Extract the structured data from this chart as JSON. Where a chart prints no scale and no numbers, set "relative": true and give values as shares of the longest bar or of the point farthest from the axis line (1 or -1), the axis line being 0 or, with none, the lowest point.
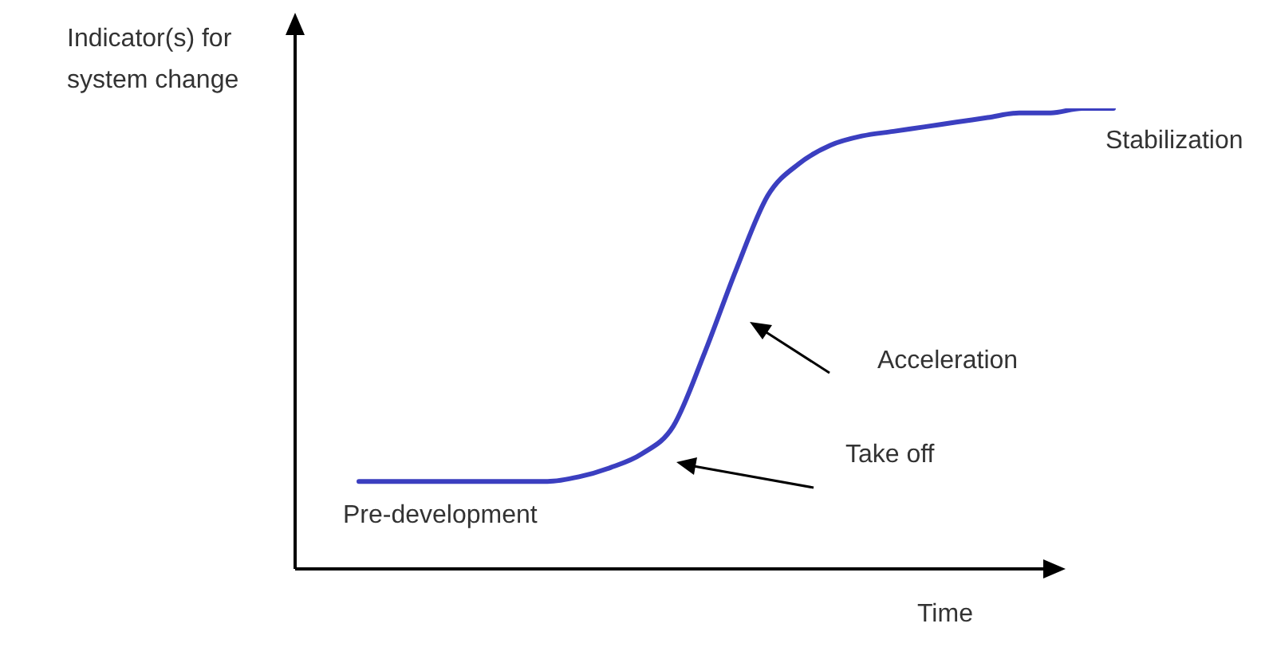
{
  "chart_data": {
    "type": "line",
    "relative": true,
    "xlabel": "Time",
    "ylabel": "Indicator(s) for system change",
    "marker": "none",
    "annotations": [
      "Pre-development",
      "Take off",
      "Acceleration",
      "Stabilization"
    ],
    "categories": [
      null,
      null,
      null,
      null,
      null,
      null,
      null,
      null,
      null,
      null,
      null,
      null,
      null,
      null,
      null,
      null,
      null,
      null,
      null,
      null,
      null,
      null,
      null,
      null,
      null
    ],
    "series": [
      {
        "color": "#3b3fc0",
        "values": [
          0.19,
          0.19,
          0.19,
          0.19,
          0.19,
          0.19,
          0.19,
          0.2,
          0.22,
          0.25,
          0.31,
          0.47,
          0.65,
          0.81,
          0.88,
          0.92,
          0.94,
          0.95,
          0.96,
          0.97,
          0.98,
          0.99,
          0.99,
          1.0,
          1.0
        ]
      }
    ]
  }
}
